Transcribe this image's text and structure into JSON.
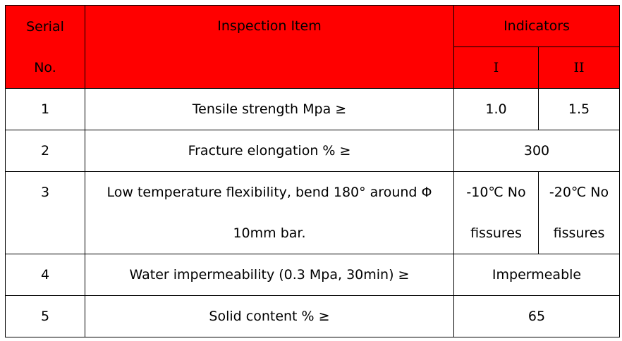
{
  "table": {
    "header": {
      "serial": [
        "Serial",
        "No."
      ],
      "item": "Inspection Item",
      "indicators": "Indicators",
      "levels": [
        "I",
        "II"
      ]
    },
    "rows": [
      {
        "no": "1",
        "item": [
          "Tensile strength Mpa  ≥"
        ],
        "values": [
          [
            "1.0"
          ],
          [
            "1.5"
          ]
        ]
      },
      {
        "no": "2",
        "item": [
          "Fracture elongation %  ≥"
        ],
        "values": [
          [
            "300"
          ]
        ]
      },
      {
        "no": "3",
        "item": [
          "Low temperature flexibility, bend 180°  around  Φ",
          "10mm bar."
        ],
        "values": [
          [
            "-10℃  No",
            "fissures"
          ],
          [
            "-20℃  No",
            "fissures"
          ]
        ]
      },
      {
        "no": "4",
        "item": [
          "Water impermeability (0.3 Mpa, 30min)  ≥"
        ],
        "values": [
          [
            "Impermeable"
          ]
        ]
      },
      {
        "no": "5",
        "item": [
          "Solid content %  ≥"
        ],
        "values": [
          [
            "65"
          ]
        ]
      }
    ]
  }
}
